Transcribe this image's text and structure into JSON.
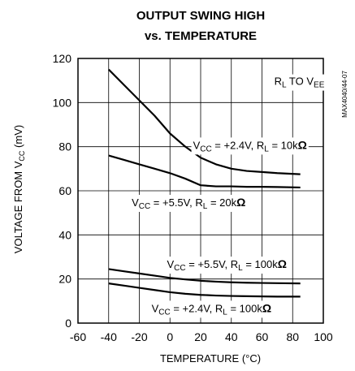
{
  "chart_data": {
    "type": "line",
    "title_line1": "OUTPUT SWING HIGH",
    "title_line2": "vs. TEMPERATURE",
    "xlabel": "TEMPERATURE (°C)",
    "ylabel": "VOLTAGE FROM V CC (mV)",
    "ylabel_main": "VOLTAGE FROM V",
    "ylabel_sub": "CC",
    "ylabel_tail": " (mV)",
    "xlim": [
      -60,
      100
    ],
    "ylim": [
      0,
      120
    ],
    "xticks": [
      -60,
      -40,
      -20,
      0,
      20,
      40,
      60,
      80,
      100
    ],
    "yticks": [
      0,
      20,
      40,
      60,
      80,
      100,
      120
    ],
    "grid": true,
    "side_label": "MAX4040/44-07",
    "annotations": [
      {
        "id": "rl-to-vee",
        "parts": [
          [
            "R",
            ""
          ],
          [
            "L",
            "sub"
          ],
          [
            " TO V",
            ""
          ],
          [
            "EE",
            "sub"
          ]
        ],
        "x": 68,
        "y": 108
      },
      {
        "id": "a1",
        "parts": [
          [
            "V",
            ""
          ],
          [
            "CC",
            "sub"
          ],
          [
            " = +2.4V, R",
            ""
          ],
          [
            "L",
            "sub"
          ],
          [
            " = 10k",
            ""
          ],
          [
            "Ω",
            "bold"
          ]
        ],
        "x": 15,
        "y": 79
      },
      {
        "id": "a2",
        "parts": [
          [
            "V",
            ""
          ],
          [
            "CC",
            "sub"
          ],
          [
            " = +5.5V, R",
            ""
          ],
          [
            "L",
            "sub"
          ],
          [
            " = 20k",
            ""
          ],
          [
            "Ω",
            "bold"
          ]
        ],
        "x": -25,
        "y": 53
      },
      {
        "id": "a3",
        "parts": [
          [
            "V",
            ""
          ],
          [
            "CC",
            "sub"
          ],
          [
            " = +5.5V, R",
            ""
          ],
          [
            "L",
            "sub"
          ],
          [
            " = 100k",
            ""
          ],
          [
            "Ω",
            "bold"
          ]
        ],
        "x": -2,
        "y": 25
      },
      {
        "id": "a4",
        "parts": [
          [
            "V",
            ""
          ],
          [
            "CC",
            "sub"
          ],
          [
            " = +2.4V, R",
            ""
          ],
          [
            "L",
            "sub"
          ],
          [
            " = 100k",
            ""
          ],
          [
            "Ω",
            "bold"
          ]
        ],
        "x": -12,
        "y": 5
      }
    ],
    "series": [
      {
        "x": [
          -40,
          -30,
          -20,
          -10,
          0,
          10,
          20,
          30,
          40,
          50,
          60,
          70,
          85
        ],
        "y": [
          115,
          108,
          101,
          94,
          86,
          80,
          75,
          72,
          70,
          69,
          68.5,
          68,
          67.5
        ]
      },
      {
        "x": [
          -40,
          -30,
          -20,
          -10,
          0,
          10,
          20,
          30,
          40,
          50,
          60,
          70,
          85
        ],
        "y": [
          76,
          74,
          72,
          70,
          68,
          65.5,
          62.5,
          62,
          62,
          61.8,
          61.8,
          61.7,
          61.5
        ]
      },
      {
        "x": [
          -40,
          -30,
          -20,
          -10,
          0,
          10,
          20,
          30,
          40,
          50,
          60,
          70,
          85
        ],
        "y": [
          24.5,
          23.5,
          22.5,
          21.5,
          20.5,
          19.8,
          19.2,
          18.8,
          18.5,
          18.3,
          18.2,
          18.1,
          18
        ]
      },
      {
        "x": [
          -40,
          -30,
          -20,
          -10,
          0,
          10,
          20,
          30,
          40,
          50,
          60,
          70,
          85
        ],
        "y": [
          18,
          17,
          16,
          15,
          14,
          13.3,
          12.8,
          12.5,
          12.3,
          12.2,
          12.1,
          12,
          12
        ]
      }
    ]
  }
}
